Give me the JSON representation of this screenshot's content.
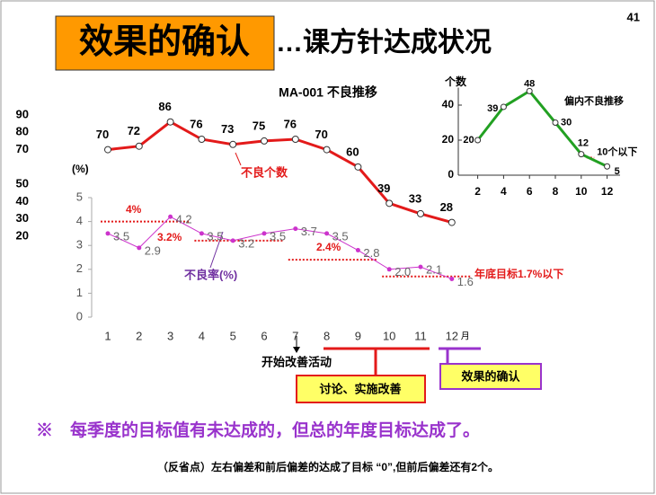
{
  "slide": {
    "title": "效果的确认",
    "subtitle": "…课方针达成状况",
    "page": "41",
    "conclusion": "※　每季度的目标值有未达成的，但总的年度目标达成了。",
    "note": "（反省点）左右偏差和前后偏差的达成了目标 “0”,但前后偏差还有2个。"
  },
  "chart_data": [
    {
      "type": "line",
      "title": "MA-001 不良推移",
      "categories": [
        "1",
        "2",
        "3",
        "4",
        "5",
        "6",
        "7",
        "8",
        "9",
        "10",
        "11",
        "12"
      ],
      "x_unit": "月",
      "series": [
        {
          "name": "不良个数",
          "color": "#e31a1a",
          "values": [
            70,
            72,
            86,
            76,
            73,
            75,
            76,
            70,
            60,
            39,
            33,
            28
          ]
        },
        {
          "name": "不良率(%)",
          "color": "#cc33cc",
          "axis": "y2",
          "values": [
            3.5,
            2.9,
            4.2,
            3.5,
            3.2,
            3.5,
            3.7,
            3.5,
            2.8,
            2.0,
            2.1,
            1.6
          ],
          "value_labels": [
            "3.5",
            "2.9",
            "4.2",
            "3.5",
            "3.2",
            "3.5",
            "3.7",
            "3.5",
            "2.8",
            "2.0",
            "2.1",
            "1.6"
          ]
        }
      ],
      "ylim": [
        20,
        90
      ],
      "yticks": [
        20,
        30,
        40,
        50,
        70,
        80,
        90
      ],
      "y2label": "(%)",
      "y2lim": [
        0,
        5
      ],
      "y2ticks": [
        0,
        1,
        2,
        3,
        4,
        5
      ],
      "targets": [
        {
          "value": 4,
          "label": "4%"
        },
        {
          "value": 3.2,
          "label": "3.2%"
        },
        {
          "value": 2.4,
          "label": "2.4%"
        },
        {
          "value": 1.7,
          "label": "年底目标1.7%以下"
        }
      ],
      "annotations": [
        "开始改善活动",
        "讨论、实施改善",
        "效果的确认"
      ]
    },
    {
      "type": "line",
      "title": "偏内不良推移",
      "ylabel": "个数",
      "x": [
        2,
        4,
        6,
        8,
        10,
        12
      ],
      "values": [
        20,
        39,
        48,
        30,
        12,
        5
      ],
      "color": "#22a022",
      "xlim": [
        0.5,
        13
      ],
      "xticks": [
        2,
        4,
        6,
        8,
        10,
        12
      ],
      "ylim": [
        0,
        50
      ],
      "yticks": [
        0,
        20,
        40
      ],
      "target": {
        "value": 10,
        "label": "10个以下"
      }
    }
  ]
}
